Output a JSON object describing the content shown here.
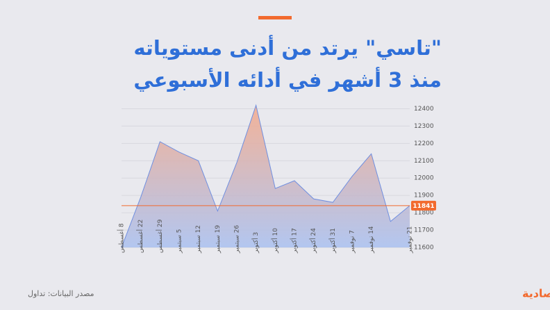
{
  "title_lines": [
    "\"تاسي\" يرتد من أدنى مستوياته",
    "منذ 3 أشهر في أدائه الأسبوعي"
  ],
  "source": "مصدر البيانات: تداول",
  "logo": "الاقتصادية",
  "chart_data": {
    "type": "area",
    "categories": [
      "8 أغسطس",
      "22 أغسطس",
      "29 أغسطس",
      "5 سبتمبر",
      "12 سبتمبر",
      "19 سبتمبر",
      "26 سبتمبر",
      "3 أكتوبر",
      "10 أكتوبر",
      "17 أكتوبر",
      "24 أكتوبر",
      "31 أكتوبر",
      "7 نوفمبر",
      "14 نوفمبر",
      null,
      "21 نوفمبر"
    ],
    "values": [
      11600,
      11890,
      12210,
      12150,
      12100,
      11810,
      12090,
      12420,
      11940,
      11985,
      11880,
      11860,
      12010,
      12140,
      11750,
      11841
    ],
    "color": "#6f8fe0",
    "ylim": [
      11600,
      12450
    ],
    "yticks": [
      11600,
      11700,
      11800,
      11900,
      12000,
      12100,
      12200,
      12300,
      12400
    ],
    "grid": true,
    "reference_line": {
      "value": 11841,
      "label": "11841",
      "color": "#f26a2e"
    }
  }
}
